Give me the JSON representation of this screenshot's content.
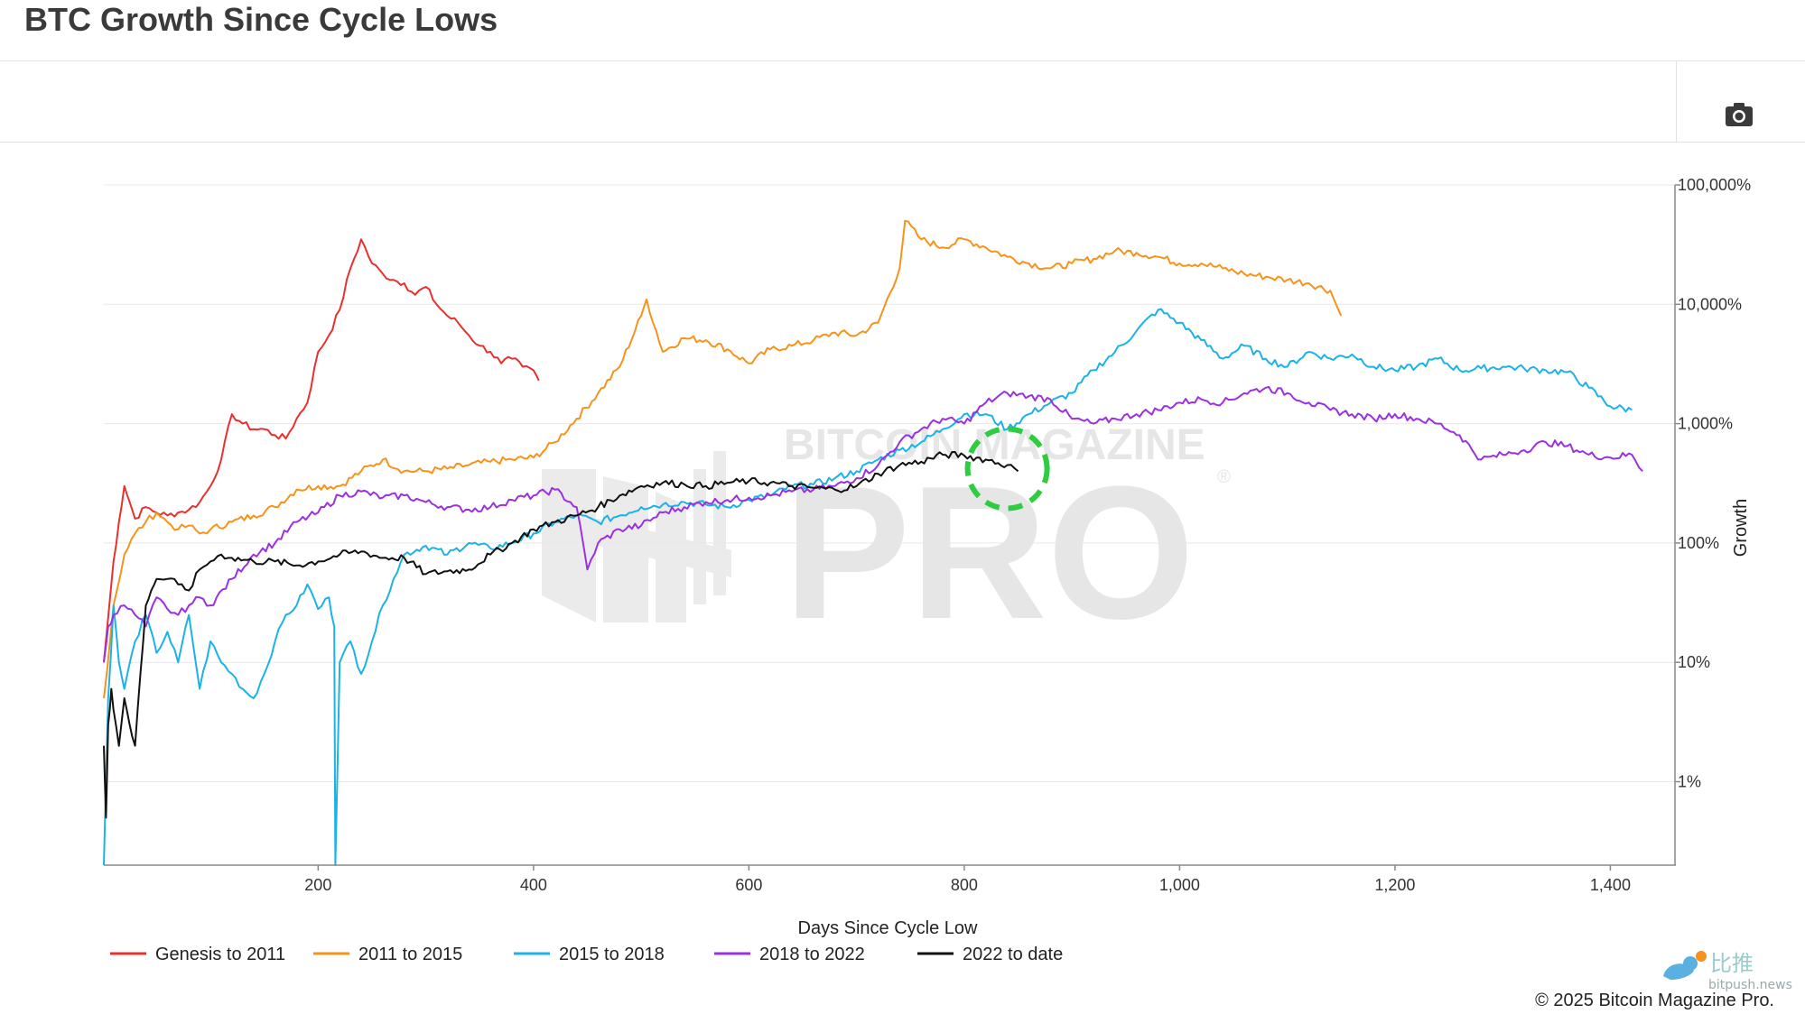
{
  "header": {
    "title": "BTC Growth Since Cycle Lows"
  },
  "toolbar": {
    "camera_icon": "camera-icon"
  },
  "footer": {
    "copyright": "© 2025 Bitcoin Magazine Pro."
  },
  "watermark": {
    "brand_top": "BITCOIN MAGAZINE",
    "brand_main": "PRO",
    "corner_cn": "比推",
    "corner_site": "bitpush.news"
  },
  "chart_data": {
    "type": "line",
    "title": "BTC Growth Since Cycle Lows",
    "xlabel": "Days Since Cycle Low",
    "ylabel": "Growth",
    "x_scale": "linear",
    "y_scale": "log",
    "xlim": [
      1,
      1460
    ],
    "ylim": [
      0.2,
      100000
    ],
    "x_ticks": [
      200,
      400,
      600,
      800,
      1000,
      1200,
      1400
    ],
    "x_tick_labels": [
      "200",
      "400",
      "600",
      "800",
      "1,000",
      "1,200",
      "1,400"
    ],
    "y_ticks": [
      1,
      10,
      100,
      1000,
      10000,
      100000
    ],
    "y_tick_labels": [
      "1%",
      "10%",
      "100%",
      "1,000%",
      "10,000%",
      "100,000%"
    ],
    "grid": true,
    "legend_position": "bottom-left",
    "annotation": {
      "type": "dashed-circle",
      "color": "#2ecc40",
      "x": 840,
      "y": 420
    },
    "series": [
      {
        "name": "Genesis to 2011",
        "color": "#e8312f",
        "x": [
          1,
          10,
          15,
          20,
          25,
          30,
          40,
          50,
          60,
          70,
          80,
          90,
          100,
          110,
          120,
          130,
          140,
          150,
          160,
          170,
          180,
          190,
          200,
          210,
          220,
          230,
          240,
          250,
          260,
          270,
          280,
          290,
          300,
          310,
          320,
          330,
          340,
          350,
          360,
          370,
          380,
          390,
          400,
          405
        ],
        "y": [
          10,
          70,
          150,
          300,
          220,
          160,
          200,
          180,
          170,
          180,
          190,
          220,
          300,
          500,
          1200,
          1000,
          900,
          900,
          800,
          750,
          1100,
          1500,
          4000,
          5500,
          9000,
          20000,
          35000,
          22000,
          18000,
          16000,
          15000,
          12000,
          14000,
          10000,
          8000,
          7000,
          5500,
          4500,
          4000,
          3200,
          3500,
          3000,
          2800,
          2300
        ]
      },
      {
        "name": "2011 to 2015",
        "color": "#f7931a",
        "x": [
          1,
          10,
          20,
          30,
          40,
          50,
          60,
          70,
          80,
          90,
          100,
          120,
          140,
          160,
          180,
          200,
          220,
          240,
          260,
          280,
          300,
          320,
          340,
          360,
          380,
          400,
          420,
          440,
          460,
          480,
          500,
          505,
          520,
          540,
          560,
          580,
          600,
          620,
          640,
          660,
          680,
          700,
          720,
          740,
          745,
          760,
          780,
          800,
          820,
          840,
          860,
          880,
          900,
          920,
          940,
          960,
          980,
          1000,
          1020,
          1040,
          1060,
          1080,
          1100,
          1120,
          1140,
          1150
        ],
        "y": [
          5,
          30,
          80,
          120,
          150,
          180,
          150,
          130,
          140,
          120,
          130,
          150,
          170,
          200,
          280,
          300,
          300,
          400,
          500,
          400,
          400,
          420,
          450,
          480,
          500,
          520,
          700,
          1100,
          1800,
          3000,
          8000,
          11000,
          4000,
          5200,
          5000,
          4200,
          3200,
          4200,
          4500,
          5000,
          5800,
          5500,
          7000,
          20000,
          50000,
          35000,
          30000,
          35000,
          30000,
          25000,
          22000,
          20000,
          22000,
          24000,
          28000,
          27000,
          25000,
          22000,
          22000,
          20000,
          18000,
          17000,
          16000,
          15000,
          13000,
          8000
        ]
      },
      {
        "name": "2015 to 2018",
        "color": "#1cb2e8",
        "x": [
          1,
          5,
          10,
          15,
          20,
          30,
          40,
          50,
          60,
          70,
          80,
          90,
          100,
          110,
          120,
          130,
          140,
          150,
          160,
          170,
          180,
          190,
          200,
          210,
          215,
          216,
          220,
          230,
          240,
          250,
          260,
          270,
          280,
          300,
          320,
          340,
          360,
          380,
          400,
          420,
          440,
          460,
          480,
          500,
          520,
          540,
          560,
          580,
          600,
          620,
          640,
          660,
          680,
          700,
          720,
          740,
          760,
          780,
          800,
          820,
          840,
          860,
          880,
          900,
          920,
          940,
          960,
          980,
          1000,
          1020,
          1040,
          1060,
          1080,
          1100,
          1120,
          1140,
          1160,
          1180,
          1200,
          1220,
          1240,
          1260,
          1280,
          1300,
          1320,
          1340,
          1360,
          1380,
          1400,
          1420
        ],
        "y": [
          0.2,
          5,
          30,
          10,
          6,
          15,
          25,
          12,
          18,
          10,
          25,
          6,
          15,
          10,
          8,
          6,
          5,
          8,
          15,
          25,
          30,
          45,
          28,
          35,
          20,
          0.2,
          10,
          15,
          8,
          15,
          30,
          50,
          80,
          95,
          80,
          100,
          90,
          100,
          120,
          150,
          170,
          150,
          170,
          200,
          210,
          220,
          210,
          200,
          230,
          250,
          300,
          310,
          350,
          400,
          500,
          600,
          700,
          900,
          1200,
          1200,
          900,
          1200,
          1500,
          1800,
          2800,
          4000,
          6000,
          9000,
          7000,
          5000,
          3500,
          4500,
          3500,
          3000,
          4000,
          3500,
          3800,
          3000,
          2800,
          3000,
          3500,
          2800,
          2900,
          3000,
          2900,
          2800,
          2700,
          2000,
          1400,
          1300
        ]
      },
      {
        "name": "2018 to 2022",
        "color": "#9b30e0",
        "x": [
          1,
          5,
          10,
          20,
          30,
          40,
          50,
          60,
          70,
          80,
          90,
          100,
          120,
          140,
          160,
          180,
          200,
          220,
          240,
          260,
          280,
          300,
          320,
          340,
          360,
          380,
          400,
          420,
          440,
          450,
          460,
          480,
          500,
          520,
          540,
          560,
          580,
          600,
          620,
          640,
          660,
          680,
          700,
          720,
          740,
          760,
          780,
          800,
          820,
          840,
          860,
          880,
          900,
          920,
          940,
          960,
          980,
          1000,
          1020,
          1040,
          1060,
          1080,
          1100,
          1120,
          1140,
          1160,
          1180,
          1200,
          1220,
          1240,
          1260,
          1280,
          1300,
          1320,
          1340,
          1360,
          1380,
          1400,
          1420,
          1430
        ],
        "y": [
          10,
          20,
          25,
          30,
          25,
          20,
          35,
          28,
          25,
          30,
          35,
          30,
          50,
          80,
          100,
          150,
          180,
          250,
          270,
          240,
          250,
          220,
          200,
          190,
          200,
          230,
          250,
          280,
          200,
          60,
          100,
          130,
          140,
          180,
          200,
          220,
          230,
          240,
          250,
          270,
          280,
          300,
          350,
          450,
          700,
          900,
          1100,
          1000,
          1500,
          1800,
          1700,
          1600,
          1100,
          1000,
          1100,
          1200,
          1300,
          1500,
          1600,
          1500,
          1800,
          2000,
          1800,
          1500,
          1300,
          1200,
          1100,
          1200,
          1100,
          1000,
          800,
          500,
          550,
          600,
          700,
          650,
          550,
          520,
          550,
          400
        ]
      },
      {
        "name": "2022 to date",
        "color": "#111111",
        "x": [
          1,
          3,
          5,
          8,
          10,
          15,
          20,
          25,
          30,
          35,
          40,
          45,
          50,
          60,
          70,
          80,
          90,
          100,
          110,
          120,
          140,
          160,
          180,
          200,
          220,
          240,
          260,
          280,
          300,
          320,
          340,
          360,
          380,
          400,
          420,
          440,
          460,
          480,
          500,
          520,
          540,
          560,
          580,
          600,
          620,
          640,
          660,
          680,
          700,
          720,
          740,
          760,
          780,
          800,
          820,
          840,
          850
        ],
        "y": [
          2,
          0.5,
          3,
          6,
          4,
          2,
          5,
          3,
          2,
          8,
          30,
          40,
          50,
          50,
          45,
          40,
          60,
          70,
          80,
          75,
          70,
          70,
          65,
          70,
          80,
          85,
          75,
          75,
          55,
          58,
          60,
          80,
          100,
          130,
          150,
          170,
          200,
          250,
          300,
          320,
          310,
          300,
          320,
          330,
          320,
          300,
          290,
          280,
          300,
          380,
          450,
          480,
          550,
          540,
          500,
          450,
          400
        ]
      }
    ]
  }
}
